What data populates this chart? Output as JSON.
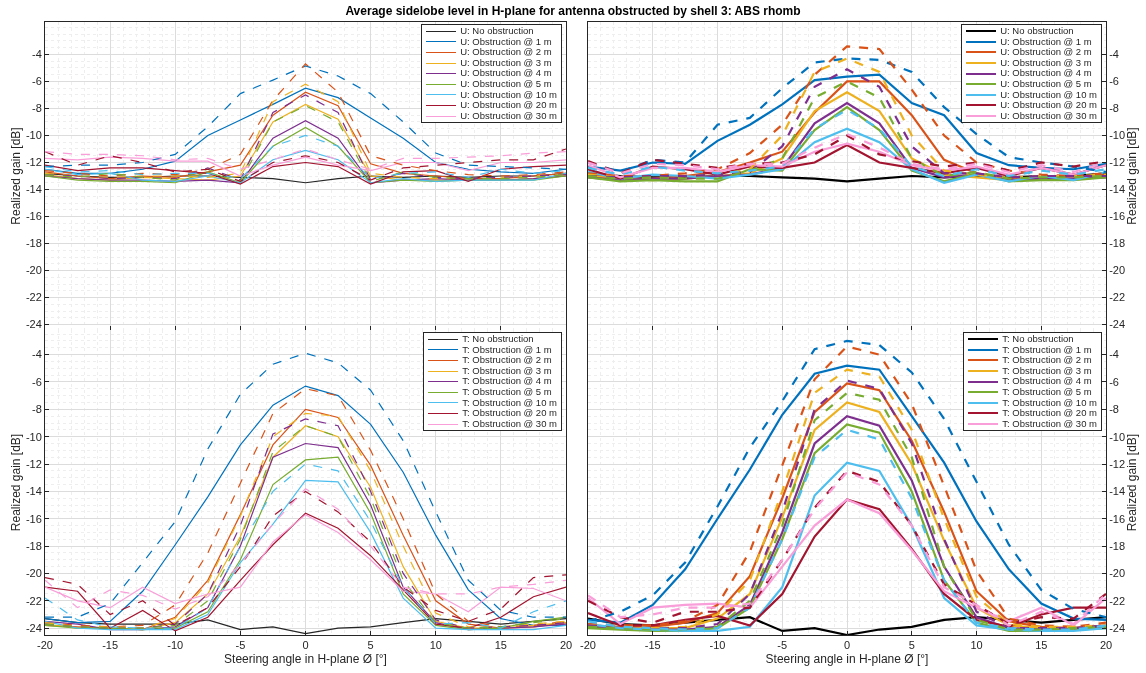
{
  "chart_data": [
    {
      "type": "line",
      "title": "Average sidelobe level in H-plane for antenna obstructed by shell 3: ABS rhomb",
      "ylabel": "Realized gain [dB]",
      "x": [
        -20,
        -17.5,
        -15,
        -12.5,
        -10,
        -7.5,
        -5,
        -2.5,
        0,
        2.5,
        5,
        7.5,
        10,
        12.5,
        15,
        17.5,
        20
      ],
      "xlim": [
        -20,
        20
      ],
      "xticks": [
        -20,
        -15,
        -10,
        -5,
        0,
        5,
        10,
        15,
        20
      ],
      "ylim": [
        -24.4,
        -1.6
      ],
      "yticks": [
        -24,
        -22,
        -20,
        -18,
        -16,
        -14,
        -12,
        -10,
        -8,
        -6,
        -4
      ],
      "grid": true,
      "legend": "top right",
      "tick_labels": "y",
      "series": [
        {
          "name": "U: No obstruction",
          "color": "#262626",
          "values": [
            -12.8,
            -13,
            -13.1,
            -13.1,
            -13,
            -13,
            -13.1,
            -13.2,
            -13.5,
            -13.2,
            -13,
            -13.1,
            -13,
            -13.1,
            -13,
            -13,
            -12.8
          ]
        },
        {
          "name": "U: Obstruction @ 1 m",
          "color": "#0072bd",
          "values": [
            -12.5,
            -12.8,
            -12.8,
            -12.5,
            -11.9,
            -10,
            -8.85,
            -7.7,
            -6.5,
            -7.2,
            -8.7,
            -10.2,
            -12,
            -12.5,
            -12.7,
            -12.8,
            -12.5
          ]
        },
        {
          "name": "U: Obstruction @ 2 m",
          "color": "#d95319",
          "values": [
            -12.7,
            -13,
            -13.2,
            -13,
            -13.1,
            -12.7,
            -12.2,
            -8.5,
            -6.8,
            -7.8,
            -12.1,
            -12.8,
            -13,
            -13.2,
            -13.2,
            -13,
            -12.8
          ]
        },
        {
          "name": "U: Obstruction @ 3 m",
          "color": "#edb120",
          "values": [
            -12.9,
            -13.2,
            -13.3,
            -13.1,
            -13.2,
            -13.3,
            -13,
            -9,
            -7.7,
            -8.8,
            -13,
            -13.3,
            -13.3,
            -13.3,
            -13.3,
            -13.2,
            -13
          ]
        },
        {
          "name": "U: Obstruction @ 4 m",
          "color": "#7e2f8e",
          "values": [
            -13,
            -13.2,
            -13.3,
            -13.3,
            -13.4,
            -13.3,
            -13.5,
            -10.2,
            -8.9,
            -10.2,
            -13.5,
            -13.3,
            -13.2,
            -13.3,
            -13.3,
            -13.2,
            -13
          ]
        },
        {
          "name": "U: Obstruction @ 5 m",
          "color": "#77ac30",
          "values": [
            -13,
            -13.3,
            -13.4,
            -13.4,
            -13.5,
            -12.7,
            -13.5,
            -10.8,
            -9.4,
            -10.8,
            -13.5,
            -13.3,
            -13.4,
            -13.3,
            -13.3,
            -13.3,
            -13
          ]
        },
        {
          "name": "U: Obstruction @ 10 m",
          "color": "#4dbeee",
          "values": [
            -12.5,
            -12.9,
            -12.8,
            -13.3,
            -13.4,
            -13,
            -13.5,
            -11.8,
            -11.1,
            -11.8,
            -13.5,
            -13.2,
            -13.4,
            -13.3,
            -13.3,
            -13.3,
            -12.8
          ]
        },
        {
          "name": "U: Obstruction @ 20 m",
          "color": "#a2142f",
          "values": [
            -12.2,
            -12.6,
            -12.4,
            -12.4,
            -12.6,
            -12.8,
            -13.6,
            -12.3,
            -12,
            -12.3,
            -13.6,
            -12.7,
            -12.6,
            -13.4,
            -12.5,
            -12.3,
            -12.2
          ]
        },
        {
          "name": "U: Obstruction @ 30 m",
          "color": "#f99ed8",
          "values": [
            -11.7,
            -11.8,
            -11.6,
            -11.7,
            -11.9,
            -11.9,
            -13,
            -12.2,
            -11.6,
            -12.2,
            -12.6,
            -12,
            -12,
            -12.6,
            -12,
            -12,
            -11.8
          ]
        },
        {
          "color": "#0072bd",
          "line_style": "dashed",
          "values": [
            -12.3,
            -12.2,
            -12.2,
            -12,
            -11.4,
            -9.35,
            -6.9,
            -5.9,
            -4.85,
            -5.6,
            -6.9,
            -9,
            -11.3,
            -12.2,
            -12.3,
            -12.4,
            -12.5
          ]
        },
        {
          "color": "#d95319",
          "line_style": "dashed",
          "values": [
            -12.6,
            -12.8,
            -13,
            -12.8,
            -12.9,
            -12.5,
            -11.4,
            -7.4,
            -4.7,
            -6.8,
            -11.5,
            -12.2,
            -12.6,
            -12.9,
            -13,
            -12.9,
            -12.7
          ]
        },
        {
          "color": "#edb120",
          "line_style": "dashed",
          "values": [
            -12.8,
            -13,
            -13.1,
            -13,
            -13,
            -13.1,
            -12.8,
            -7.5,
            -6.2,
            -7.5,
            -12.8,
            -13.1,
            -13.2,
            -13.2,
            -13.1,
            -13,
            -12.9
          ]
        },
        {
          "color": "#7e2f8e",
          "line_style": "dashed",
          "values": [
            -12.9,
            -13,
            -13.2,
            -13.1,
            -13.2,
            -12.4,
            -13.3,
            -8.3,
            -7,
            -8.3,
            -13.3,
            -12.8,
            -13.1,
            -13.2,
            -13.1,
            -13,
            -12.9
          ]
        },
        {
          "color": "#77ac30",
          "line_style": "dashed",
          "values": [
            -12.9,
            -13.1,
            -12.8,
            -13.1,
            -13.3,
            -12.5,
            -13.4,
            -9,
            -7.8,
            -9,
            -13.4,
            -12.7,
            -13.1,
            -13.2,
            -13.2,
            -13.1,
            -12.9
          ]
        },
        {
          "color": "#4dbeee",
          "line_style": "dashed",
          "values": [
            -12.3,
            -12.7,
            -12.6,
            -12.9,
            -12.8,
            -12.8,
            -13.2,
            -10.8,
            -10,
            -10.8,
            -13.2,
            -12.8,
            -12.7,
            -13.1,
            -12.5,
            -12.8,
            -12.6
          ]
        },
        {
          "color": "#a2142f",
          "line_style": "dashed",
          "values": [
            -11.2,
            -12.2,
            -11.5,
            -12,
            -12.7,
            -12.5,
            -13.4,
            -12,
            -11.5,
            -12,
            -13.3,
            -12.4,
            -12.2,
            -12,
            -11.8,
            -11.8,
            -11
          ]
        },
        {
          "color": "#f99ed8",
          "line_style": "dashed",
          "values": [
            -11.2,
            -11.4,
            -11.4,
            -11.5,
            -11.8,
            -11.7,
            -12.5,
            -11.8,
            -11,
            -11.8,
            -12.5,
            -11.7,
            -11.7,
            -11.6,
            -11.5,
            -11.3,
            -11.2
          ]
        }
      ]
    },
    {
      "type": "line",
      "ylabel": "Realized gain [dB]",
      "x": [
        -20,
        -17.5,
        -15,
        -12.5,
        -10,
        -7.5,
        -5,
        -2.5,
        0,
        2.5,
        5,
        7.5,
        10,
        12.5,
        15,
        17.5,
        20
      ],
      "xlim": [
        -20,
        20
      ],
      "xticks": [
        -20,
        -15,
        -10,
        -5,
        0,
        5,
        10,
        15,
        20
      ],
      "ylim": [
        -24.4,
        -1.6
      ],
      "yticks": [
        -24,
        -22,
        -20,
        -18,
        -16,
        -14,
        -12,
        -10,
        -8,
        -6,
        -4
      ],
      "grid": true,
      "legend": "top right",
      "tick_labels": "y",
      "series": [
        {
          "name": "U: No obstruction",
          "color": "#000000",
          "values": [
            -12.8,
            -13,
            -13.1,
            -13.1,
            -13,
            -13,
            -13.1,
            -13.2,
            -13.4,
            -13.2,
            -13,
            -13.1,
            -13,
            -13.1,
            -13,
            -13,
            -12.8
          ]
        },
        {
          "name": "U: Obstruction @ 1 m",
          "color": "#0072bd",
          "values": [
            -12.3,
            -12.6,
            -12,
            -12.1,
            -10.4,
            -9.2,
            -7.7,
            -5.9,
            -5.65,
            -5.5,
            -7.6,
            -8.5,
            -11.3,
            -12.2,
            -12.4,
            -12.5,
            -12.1
          ]
        },
        {
          "name": "U: Obstruction @ 2 m",
          "color": "#d95319",
          "values": [
            -12.9,
            -13.2,
            -13.2,
            -13,
            -12.7,
            -12,
            -11.2,
            -8.3,
            -6,
            -6,
            -8.5,
            -11.8,
            -12.8,
            -13.2,
            -13.1,
            -13.2,
            -12.9
          ]
        },
        {
          "name": "U: Obstruction @ 3 m",
          "color": "#edb120",
          "values": [
            -13,
            -13.2,
            -13.3,
            -13.2,
            -13,
            -12.8,
            -11.7,
            -8.2,
            -6.8,
            -8.2,
            -11.7,
            -12.9,
            -13.1,
            -13.3,
            -13.2,
            -13.2,
            -13
          ]
        },
        {
          "name": "U: Obstruction @ 4 m",
          "color": "#7e2f8e",
          "values": [
            -13.1,
            -13.3,
            -13.2,
            -13.2,
            -13,
            -12.9,
            -12.4,
            -9.1,
            -7.6,
            -9.1,
            -12.4,
            -13.1,
            -12.9,
            -13.3,
            -13.2,
            -13.2,
            -13.1
          ]
        },
        {
          "name": "U: Obstruction @ 5 m",
          "color": "#77ac30",
          "values": [
            -13.1,
            -13.4,
            -13.3,
            -13.4,
            -13.4,
            -12.5,
            -12.6,
            -9.6,
            -7.9,
            -9.6,
            -12.6,
            -13.4,
            -12.8,
            -13.4,
            -13.3,
            -13.3,
            -13.1
          ]
        },
        {
          "name": "U: Obstruction @ 10 m",
          "color": "#4dbeee",
          "values": [
            -12.7,
            -13.2,
            -12.9,
            -13,
            -13.2,
            -12.9,
            -12.5,
            -10.5,
            -9.5,
            -10.5,
            -12.5,
            -13.5,
            -12.9,
            -13.4,
            -13,
            -13.3,
            -12.7
          ]
        },
        {
          "name": "U: Obstruction @ 20 m",
          "color": "#a2142f",
          "values": [
            -12.5,
            -13.2,
            -12.3,
            -12.5,
            -12.9,
            -12.3,
            -12.4,
            -12,
            -10.7,
            -12,
            -12.4,
            -12.8,
            -12.4,
            -13,
            -12.4,
            -12.9,
            -12.2
          ]
        },
        {
          "name": "U: Obstruction @ 30 m",
          "color": "#f99ed8",
          "values": [
            -12.2,
            -13.1,
            -12.4,
            -12.4,
            -12.7,
            -12.2,
            -12.3,
            -11.2,
            -10.6,
            -11.2,
            -12.2,
            -12.6,
            -12.3,
            -12.9,
            -12.4,
            -12.9,
            -12.2
          ]
        },
        {
          "color": "#0072bd",
          "line_style": "dashed",
          "values": [
            -12,
            -12.7,
            -11.8,
            -12,
            -9.2,
            -8.7,
            -6.5,
            -4.6,
            -4.3,
            -4.4,
            -5.3,
            -7.9,
            -9.9,
            -11.6,
            -12,
            -12.3,
            -12.7
          ]
        },
        {
          "color": "#d95319",
          "line_style": "dashed",
          "values": [
            -12.8,
            -13,
            -13,
            -12.8,
            -12.5,
            -11.3,
            -9.2,
            -5.5,
            -3.4,
            -3.6,
            -6.6,
            -10,
            -12,
            -12.6,
            -12.9,
            -13,
            -12.8
          ]
        },
        {
          "color": "#edb120",
          "line_style": "dashed",
          "values": [
            -12.9,
            -13.1,
            -13.1,
            -13,
            -12.9,
            -12.5,
            -10,
            -5.3,
            -4.3,
            -5.3,
            -10,
            -12.6,
            -12.9,
            -13.1,
            -13,
            -13,
            -12.9
          ]
        },
        {
          "color": "#7e2f8e",
          "line_style": "dashed",
          "values": [
            -13,
            -13.1,
            -13,
            -13,
            -12.9,
            -12.7,
            -10.8,
            -6.4,
            -5.1,
            -6.4,
            -10.8,
            -12.8,
            -12.8,
            -13.1,
            -13,
            -13,
            -13
          ]
        },
        {
          "color": "#77ac30",
          "line_style": "dashed",
          "values": [
            -13,
            -13.2,
            -13.1,
            -13.2,
            -13.2,
            -12.6,
            -11.7,
            -7.2,
            -6,
            -7.2,
            -11.7,
            -13,
            -12.7,
            -13.2,
            -13.1,
            -13.1,
            -13
          ]
        },
        {
          "color": "#4dbeee",
          "line_style": "dashed",
          "values": [
            -12.4,
            -12.9,
            -12.3,
            -12.6,
            -12.8,
            -12.6,
            -12.3,
            -9.5,
            -8.1,
            -9.5,
            -12.3,
            -13,
            -12.5,
            -13,
            -12.6,
            -12.9,
            -12.5
          ]
        },
        {
          "color": "#a2142f",
          "line_style": "dashed",
          "values": [
            -11.9,
            -12.8,
            -11.8,
            -12.1,
            -12.4,
            -12.1,
            -12,
            -11.4,
            -10,
            -11.4,
            -11.9,
            -12.3,
            -12,
            -12.6,
            -12,
            -12.3,
            -11.9
          ]
        },
        {
          "color": "#f99ed8",
          "line_style": "dashed",
          "values": [
            -12,
            -12.8,
            -12.1,
            -12.2,
            -12.5,
            -12.1,
            -12.1,
            -10.9,
            -9.9,
            -10.9,
            -12.1,
            -12.5,
            -12.1,
            -12.7,
            -12.2,
            -12.7,
            -12
          ]
        }
      ]
    },
    {
      "type": "line",
      "xlabel": "Steering angle in H-plane Ø [°]",
      "ylabel": "Realized gain [dB]",
      "x": [
        -20,
        -17.5,
        -15,
        -12.5,
        -10,
        -7.5,
        -5,
        -2.5,
        0,
        2.5,
        5,
        7.5,
        10,
        12.5,
        15,
        17.5,
        20
      ],
      "xlim": [
        -20,
        20
      ],
      "xticks": [
        -20,
        -15,
        -10,
        -5,
        0,
        5,
        10,
        15,
        20
      ],
      "ylim": [
        -24.5,
        -2.2
      ],
      "yticks": [
        -24,
        -22,
        -20,
        -18,
        -16,
        -14,
        -12,
        -10,
        -8,
        -6,
        -4
      ],
      "grid": true,
      "legend": "top right",
      "series": [
        {
          "name": "T: No obstruction",
          "color": "#262626",
          "values": [
            -23.3,
            -23.6,
            -23.7,
            -23.7,
            -23.7,
            -23.4,
            -24.1,
            -23.9,
            -24.4,
            -24,
            -23.9,
            -23.6,
            -23.3,
            -23.5,
            -23.7,
            -23.5,
            -23.3
          ]
        },
        {
          "name": "T: Obstruction @ 1 m",
          "color": "#0072bd",
          "values": [
            -23.3,
            -23.6,
            -23.5,
            -21.3,
            -17.9,
            -14.4,
            -10.6,
            -7.7,
            -6.3,
            -7,
            -9.1,
            -12.6,
            -17.2,
            -21.2,
            -23.3,
            -23.8,
            -23.8
          ]
        },
        {
          "name": "T: Obstruction @ 2 m",
          "color": "#d95319",
          "values": [
            -23.8,
            -23.9,
            -24,
            -24.1,
            -23.2,
            -20.5,
            -15.7,
            -10.6,
            -8,
            -8.6,
            -12.1,
            -17.2,
            -22,
            -23.7,
            -24,
            -23.9,
            -23.6
          ]
        },
        {
          "name": "T: Obstruction @ 3 m",
          "color": "#edb120",
          "values": [
            -23.7,
            -24,
            -24,
            -24.1,
            -23.6,
            -21.5,
            -17.3,
            -11.5,
            -9.2,
            -10,
            -13.7,
            -19.5,
            -23.5,
            -24,
            -24,
            -23.8,
            -23.6
          ]
        },
        {
          "name": "T: Obstruction @ 4 m",
          "color": "#7e2f8e",
          "values": [
            -23.5,
            -23.7,
            -24.1,
            -24.1,
            -23.9,
            -22.5,
            -18,
            -11.5,
            -10.5,
            -10.8,
            -15,
            -21,
            -23.6,
            -24.1,
            -24,
            -23.9,
            -23.7
          ]
        },
        {
          "name": "T: Obstruction @ 5 m",
          "color": "#77ac30",
          "values": [
            -23.8,
            -24,
            -24,
            -24.1,
            -24,
            -22.8,
            -19,
            -13.5,
            -11.7,
            -11.5,
            -15.6,
            -21.5,
            -23.8,
            -24.1,
            -24,
            -23.5,
            -23.2
          ]
        },
        {
          "name": "T: Obstruction @ 10 m",
          "color": "#4dbeee",
          "values": [
            -23.5,
            -24,
            -24.1,
            -24.1,
            -24.1,
            -23,
            -19.2,
            -16.4,
            -13.2,
            -13.3,
            -17,
            -21.8,
            -24,
            -24.1,
            -24.1,
            -24.1,
            -23.8
          ]
        },
        {
          "name": "T: Obstruction @ 20 m",
          "color": "#a2142f",
          "values": [
            -21,
            -21.3,
            -24,
            -22.7,
            -24.2,
            -23.2,
            -20.5,
            -17.9,
            -15.6,
            -16.7,
            -18.7,
            -21.2,
            -23.7,
            -24,
            -23.2,
            -21.7,
            -21
          ]
        },
        {
          "name": "T: Obstruction @ 30 m",
          "color": "#f99ed8",
          "values": [
            -21,
            -22,
            -22.5,
            -21,
            -22.2,
            -21.5,
            -21,
            -17.7,
            -15.7,
            -17,
            -19,
            -21.3,
            -21.5,
            -22.8,
            -21,
            -21.1,
            -22
          ]
        },
        {
          "color": "#0072bd",
          "line_style": "dashed",
          "values": [
            -23.2,
            -23.2,
            -22.2,
            -19.2,
            -16.2,
            -10.9,
            -6.9,
            -4.7,
            -3.9,
            -4.6,
            -6.6,
            -10.3,
            -15.5,
            -20.5,
            -22.7,
            -23.2,
            -23.2
          ]
        },
        {
          "color": "#d95319",
          "line_style": "dashed",
          "values": [
            -23.6,
            -23.8,
            -23.9,
            -23.8,
            -22.3,
            -18.5,
            -13.4,
            -8.3,
            -6.5,
            -7,
            -11,
            -16,
            -21.5,
            -23.5,
            -23.9,
            -23.8,
            -23.5
          ]
        },
        {
          "color": "#edb120",
          "line_style": "dashed",
          "values": [
            -23.6,
            -23.9,
            -23.9,
            -24,
            -23.3,
            -20.7,
            -15.8,
            -10,
            -8.3,
            -8.5,
            -12.5,
            -18,
            -22.9,
            -23.9,
            -23.9,
            -23.7,
            -23.5
          ]
        },
        {
          "color": "#7e2f8e",
          "line_style": "dashed",
          "values": [
            -23.7,
            -23.9,
            -24,
            -24,
            -23.7,
            -21.5,
            -16.5,
            -9.8,
            -8.7,
            -9.2,
            -14,
            -20,
            -23.4,
            -24,
            -23.9,
            -23.8,
            -23.6
          ]
        },
        {
          "color": "#77ac30",
          "line_style": "dashed",
          "values": [
            -23.7,
            -23.9,
            -24,
            -24,
            -23.8,
            -22,
            -17.5,
            -11.1,
            -9.2,
            -10,
            -14.5,
            -20.5,
            -23.6,
            -24,
            -23.9,
            -23.6,
            -23.3
          ]
        },
        {
          "color": "#4dbeee",
          "line_style": "dashed",
          "values": [
            -21.8,
            -23.4,
            -23.9,
            -24,
            -24,
            -22.5,
            -18,
            -14,
            -12,
            -12.5,
            -16.2,
            -21,
            -23.7,
            -23.6,
            -24,
            -22.8,
            -22
          ]
        },
        {
          "color": "#a2142f",
          "line_style": "dashed",
          "values": [
            -20.3,
            -20.8,
            -23,
            -22,
            -23.8,
            -22.5,
            -19.5,
            -15.8,
            -14,
            -15.5,
            -17.7,
            -21,
            -22.7,
            -23.5,
            -22.6,
            -20.3,
            -20.1
          ]
        },
        {
          "color": "#f99ed8",
          "line_style": "dashed",
          "values": [
            -20.5,
            -22.5,
            -21.2,
            -21.6,
            -22.6,
            -21.7,
            -19.3,
            -16.4,
            -13.8,
            -15.3,
            -18,
            -21,
            -21.5,
            -21.5,
            -21,
            -20.8,
            -20.5
          ]
        }
      ]
    },
    {
      "type": "line",
      "xlabel": "Steering angle in H-plane Ø [°]",
      "ylabel": "Realized gain [dB]",
      "x": [
        -20,
        -17.5,
        -15,
        -12.5,
        -10,
        -7.5,
        -5,
        -2.5,
        0,
        2.5,
        5,
        7.5,
        10,
        12.5,
        15,
        17.5,
        20
      ],
      "xlim": [
        -20,
        20
      ],
      "xticks": [
        -20,
        -15,
        -10,
        -5,
        0,
        5,
        10,
        15,
        20
      ],
      "ylim": [
        -24.5,
        -2.2
      ],
      "yticks": [
        -24,
        -22,
        -20,
        -18,
        -16,
        -14,
        -12,
        -10,
        -8,
        -6,
        -4
      ],
      "grid": true,
      "legend": "top right",
      "series": [
        {
          "name": "T: No obstruction",
          "color": "#000000",
          "values": [
            -23.3,
            -23.7,
            -23.8,
            -23.6,
            -23.4,
            -23.2,
            -24.2,
            -24,
            -24.5,
            -24.1,
            -23.9,
            -23.4,
            -23.2,
            -23.4,
            -23.6,
            -23.4,
            -23.2
          ]
        },
        {
          "name": "T: Obstruction @ 1 m",
          "color": "#0072bd",
          "values": [
            -23.4,
            -23.6,
            -22.3,
            -19.7,
            -16,
            -12.4,
            -8.4,
            -5.4,
            -4.8,
            -5.1,
            -8.5,
            -11.9,
            -16.2,
            -19.7,
            -22.2,
            -23.3,
            -23.4
          ]
        },
        {
          "name": "T: Obstruction @ 2 m",
          "color": "#d95319",
          "values": [
            -23.8,
            -23.9,
            -23.9,
            -23.6,
            -22.9,
            -20.2,
            -14.5,
            -8.2,
            -6.1,
            -6.6,
            -10.3,
            -15.5,
            -21.3,
            -23.5,
            -23.9,
            -24,
            -23.8
          ]
        },
        {
          "name": "T: Obstruction @ 3 m",
          "color": "#edb120",
          "values": [
            -23.9,
            -24,
            -24,
            -24,
            -23.3,
            -21.5,
            -15.9,
            -9.5,
            -7.5,
            -8.2,
            -12,
            -17.6,
            -22.5,
            -23.8,
            -24,
            -24,
            -23.9
          ]
        },
        {
          "name": "T: Obstruction @ 4 m",
          "color": "#7e2f8e",
          "values": [
            -23.9,
            -24,
            -24.1,
            -24.1,
            -23.9,
            -22.3,
            -17,
            -10.5,
            -8.5,
            -9.2,
            -13.2,
            -19.5,
            -23.2,
            -24,
            -24.1,
            -24,
            -23.9
          ]
        },
        {
          "name": "T: Obstruction @ 5 m",
          "color": "#77ac30",
          "values": [
            -24,
            -24.1,
            -24.2,
            -24.2,
            -24,
            -22.5,
            -17.5,
            -11.2,
            -9.1,
            -9.7,
            -14,
            -20.5,
            -23.6,
            -24.2,
            -24.2,
            -24.1,
            -24
          ]
        },
        {
          "name": "T: Obstruction @ 10 m",
          "color": "#4dbeee",
          "values": [
            -23.7,
            -24,
            -24.1,
            -24.2,
            -24.2,
            -23.9,
            -21,
            -14.3,
            -11.9,
            -12.5,
            -16.5,
            -21.8,
            -23.8,
            -24.1,
            -24.2,
            -24.2,
            -24
          ]
        },
        {
          "name": "T: Obstruction @ 20 m",
          "color": "#a2142f",
          "values": [
            -22.9,
            -23.8,
            -23.8,
            -23.4,
            -23.1,
            -23.8,
            -21.5,
            -17.3,
            -14.6,
            -15.3,
            -18.2,
            -21.5,
            -23.4,
            -23.9,
            -23,
            -22.5,
            -22.5
          ]
        },
        {
          "name": "T: Obstruction @ 30 m",
          "color": "#f99ed8",
          "values": [
            -21.8,
            -23.7,
            -22.5,
            -22.3,
            -22.2,
            -22.5,
            -19.5,
            -16.5,
            -14.6,
            -15.6,
            -18.3,
            -21.3,
            -22.5,
            -23.5,
            -22.5,
            -23.8,
            -21.8
          ]
        },
        {
          "color": "#0072bd",
          "line_style": "dashed",
          "values": [
            -23.5,
            -22.8,
            -21.6,
            -19.2,
            -15.1,
            -10.8,
            -7.4,
            -3.6,
            -3,
            -3.3,
            -5.3,
            -8.7,
            -13.3,
            -17.9,
            -21.2,
            -22.6,
            -23.2
          ]
        },
        {
          "color": "#d95319",
          "line_style": "dashed",
          "values": [
            -23.7,
            -23.8,
            -23.8,
            -23.5,
            -22.3,
            -18.4,
            -12.1,
            -5.8,
            -3.4,
            -4,
            -7.6,
            -13.6,
            -19.8,
            -23.3,
            -23.8,
            -23.9,
            -23.6
          ]
        },
        {
          "color": "#edb120",
          "line_style": "dashed",
          "values": [
            -23.8,
            -23.9,
            -24,
            -23.9,
            -23,
            -20.5,
            -14,
            -6.8,
            -5.1,
            -5.6,
            -9.5,
            -16,
            -21.7,
            -23.7,
            -23.9,
            -23.9,
            -23.8
          ]
        },
        {
          "color": "#7e2f8e",
          "line_style": "dashed",
          "values": [
            -23.8,
            -24,
            -24,
            -24,
            -23.7,
            -21.5,
            -15.5,
            -8,
            -5.9,
            -6.5,
            -10.5,
            -17.5,
            -22.8,
            -24,
            -24,
            -24,
            -23.8
          ]
        },
        {
          "color": "#77ac30",
          "line_style": "dashed",
          "values": [
            -23.9,
            -24,
            -24.1,
            -24.1,
            -23.9,
            -22,
            -16.5,
            -8.8,
            -6.8,
            -7.3,
            -11.5,
            -19.5,
            -23.4,
            -24.1,
            -24.1,
            -24,
            -23.9
          ]
        },
        {
          "color": "#4dbeee",
          "line_style": "dashed",
          "values": [
            -23.5,
            -23.9,
            -24,
            -24.1,
            -24,
            -22.5,
            -17.5,
            -11.5,
            -9.5,
            -10.2,
            -14.5,
            -20.5,
            -23.6,
            -24,
            -24.1,
            -24.1,
            -23.8
          ]
        },
        {
          "color": "#a2142f",
          "line_style": "dashed",
          "values": [
            -22,
            -23.2,
            -23.6,
            -22.8,
            -22.8,
            -22.5,
            -19,
            -15.2,
            -12.5,
            -13.3,
            -16.5,
            -20.8,
            -22.3,
            -23.7,
            -23.2,
            -23.3,
            -21.5
          ]
        },
        {
          "color": "#f99ed8",
          "line_style": "dashed",
          "values": [
            -21.6,
            -23.2,
            -23,
            -22.5,
            -22.5,
            -22.2,
            -19,
            -15.3,
            -12.6,
            -13.5,
            -16.5,
            -21,
            -22.3,
            -23.8,
            -22.8,
            -23.7,
            -21.5
          ]
        }
      ]
    }
  ]
}
